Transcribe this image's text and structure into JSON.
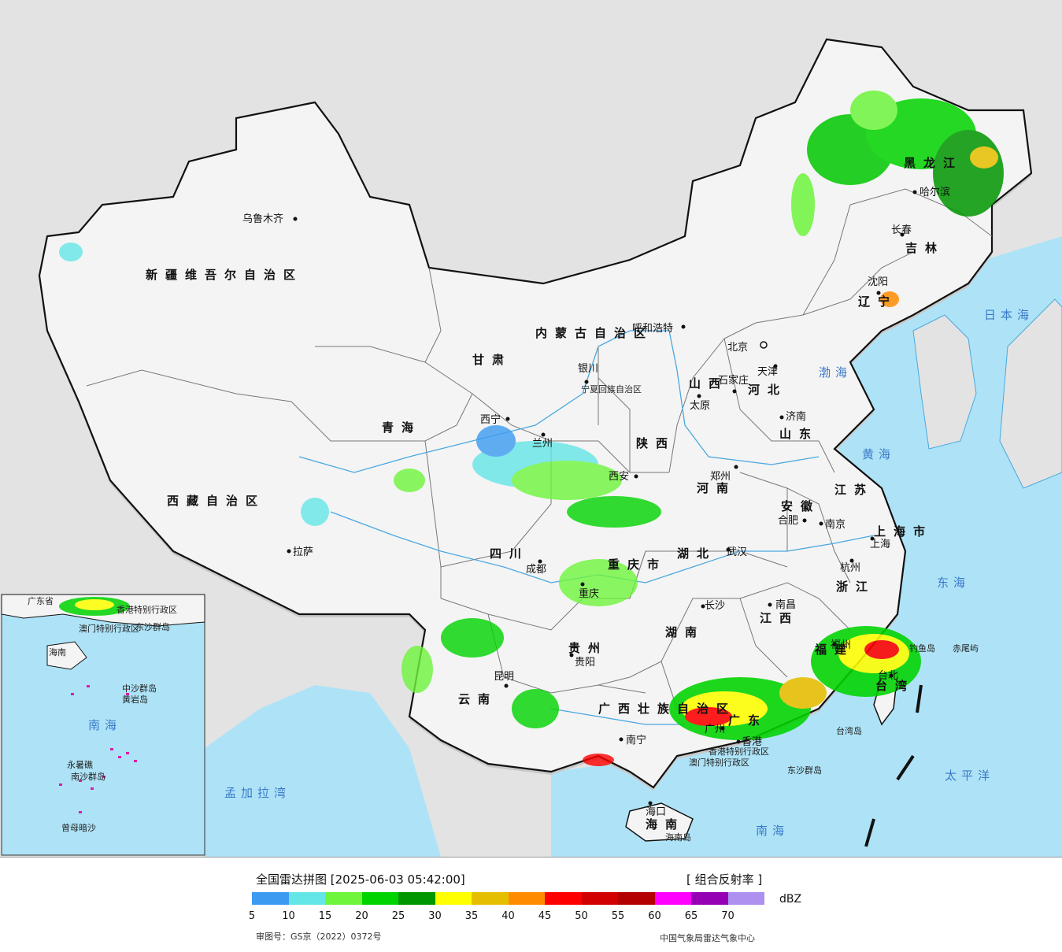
{
  "map": {
    "provinces": [
      "新疆维吾尔自治区",
      "西藏自治区",
      "青海",
      "甘肃",
      "内蒙古自治区",
      "黑龙江",
      "吉林",
      "辽宁",
      "河北",
      "山西",
      "陕西",
      "宁夏回族自治区",
      "四川",
      "重庆市",
      "云南",
      "贵州",
      "湖南",
      "湖北",
      "河南",
      "山东",
      "江苏",
      "安徽",
      "浙江",
      "江西",
      "福建",
      "广东",
      "广西壮族自治区",
      "海南",
      "台湾",
      "北京",
      "天津",
      "上海市"
    ],
    "cities": [
      "乌鲁木齐",
      "拉萨",
      "西宁",
      "兰州",
      "银川",
      "呼和浩特",
      "北京",
      "天津",
      "石家庄",
      "太原",
      "西安",
      "郑州",
      "济南",
      "南京",
      "合肥",
      "上海",
      "杭州",
      "武汉",
      "长沙",
      "南昌",
      "福州",
      "台北",
      "成都",
      "重庆",
      "贵阳",
      "昆明",
      "南宁",
      "广州",
      "香港",
      "海口",
      "哈尔滨",
      "长春",
      "沈阳"
    ],
    "seas": [
      "日本海",
      "渤海",
      "黄海",
      "东海",
      "太平洋",
      "南海",
      "孟加拉湾"
    ],
    "special": [
      "香港特别行政区",
      "澳门特别行政区",
      "东沙群岛",
      "台湾岛",
      "赤尾屿",
      "钓鱼岛",
      "海南岛"
    ],
    "inset_labels": [
      "广东省",
      "香港特别行政区",
      "澳门特别行政区",
      "东沙群岛",
      "南海",
      "中沙群岛",
      "黄岩岛",
      "永暑礁",
      "南沙群岛",
      "曾母暗沙",
      "海南"
    ]
  },
  "legend": {
    "title": "全国雷达拼图 [2025-06-03 05:42:00]",
    "product": "[ 组合反射率 ]",
    "unit": "dBZ",
    "ticks": [
      "5",
      "10",
      "15",
      "20",
      "25",
      "30",
      "35",
      "40",
      "45",
      "50",
      "55",
      "60",
      "65",
      "70"
    ],
    "colors": [
      "#3c9bf0",
      "#64e6e6",
      "#6ef53c",
      "#00d400",
      "#009600",
      "#ffff00",
      "#e6be00",
      "#ff8c00",
      "#ff0000",
      "#d20000",
      "#b40000",
      "#ff00ff",
      "#9600b4",
      "#ad90f0"
    ],
    "approval": "审图号：GS京（2022）0372号",
    "center": "中国气象局雷达气象中心"
  }
}
